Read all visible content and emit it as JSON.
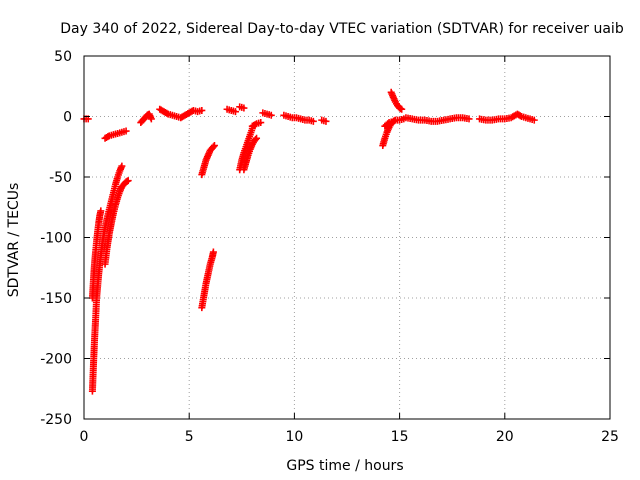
{
  "chart_data": {
    "type": "scatter",
    "title": "Day 340 of 2022, Sidereal Day-to-day VTEC variation (SDTVAR) for receiver uaib",
    "xlabel": "GPS time / hours",
    "ylabel": "SDTVAR / TECUs",
    "xlim": [
      0,
      25
    ],
    "ylim": [
      -250,
      50
    ],
    "xticks": [
      0,
      5,
      10,
      15,
      20,
      25
    ],
    "yticks": [
      50,
      0,
      -50,
      -100,
      -150,
      -200,
      -250
    ],
    "grid": true,
    "marker": "plus",
    "color": "#ff0000",
    "series": [
      {
        "name": "SDTVAR",
        "segments": [
          [
            [
              0.0,
              -2
            ],
            [
              0.1,
              -2
            ],
            [
              0.2,
              -2
            ]
          ],
          [
            [
              1.0,
              -18
            ],
            [
              1.2,
              -16
            ],
            [
              1.4,
              -15
            ],
            [
              1.6,
              -14
            ],
            [
              1.8,
              -13
            ],
            [
              2.0,
              -12
            ]
          ],
          [
            [
              0.4,
              -227
            ],
            [
              0.45,
              -205
            ],
            [
              0.5,
              -185
            ],
            [
              0.55,
              -168
            ],
            [
              0.6,
              -150
            ],
            [
              0.7,
              -130
            ],
            [
              0.8,
              -115
            ],
            [
              0.9,
              -102
            ],
            [
              1.0,
              -92
            ],
            [
              1.1,
              -84
            ],
            [
              1.2,
              -77
            ],
            [
              1.3,
              -70
            ],
            [
              1.4,
              -63
            ],
            [
              1.5,
              -56
            ],
            [
              1.6,
              -50
            ],
            [
              1.7,
              -45
            ],
            [
              1.8,
              -41
            ]
          ],
          [
            [
              0.4,
              -150
            ],
            [
              0.45,
              -135
            ],
            [
              0.5,
              -122
            ],
            [
              0.55,
              -112
            ],
            [
              0.6,
              -103
            ],
            [
              0.65,
              -95
            ],
            [
              0.7,
              -88
            ],
            [
              0.75,
              -82
            ],
            [
              0.8,
              -78
            ]
          ],
          [
            [
              1.0,
              -122
            ],
            [
              1.1,
              -108
            ],
            [
              1.2,
              -97
            ],
            [
              1.3,
              -88
            ],
            [
              1.4,
              -80
            ],
            [
              1.5,
              -73
            ],
            [
              1.6,
              -67
            ],
            [
              1.7,
              -62
            ],
            [
              1.8,
              -58
            ],
            [
              1.9,
              -56
            ],
            [
              2.0,
              -54
            ],
            [
              2.1,
              -53
            ]
          ],
          [
            [
              2.7,
              -5
            ],
            [
              2.8,
              -3
            ],
            [
              2.9,
              -1
            ],
            [
              3.0,
              1
            ],
            [
              3.1,
              2
            ],
            [
              3.2,
              -2
            ]
          ],
          [
            [
              3.6,
              6
            ],
            [
              3.8,
              4
            ],
            [
              4.0,
              2
            ],
            [
              4.2,
              1
            ],
            [
              4.4,
              0
            ],
            [
              4.6,
              -1
            ],
            [
              4.8,
              1
            ],
            [
              5.0,
              3
            ],
            [
              5.2,
              5
            ],
            [
              5.4,
              4
            ],
            [
              5.6,
              5
            ]
          ],
          [
            [
              5.6,
              -158
            ],
            [
              5.7,
              -148
            ],
            [
              5.8,
              -138
            ],
            [
              5.9,
              -130
            ],
            [
              6.0,
              -122
            ],
            [
              6.1,
              -116
            ],
            [
              6.15,
              -112
            ]
          ],
          [
            [
              5.6,
              -48
            ],
            [
              5.7,
              -42
            ],
            [
              5.8,
              -36
            ],
            [
              5.9,
              -32
            ],
            [
              6.0,
              -28
            ],
            [
              6.1,
              -26
            ],
            [
              6.2,
              -24
            ]
          ],
          [
            [
              6.8,
              6
            ],
            [
              7.0,
              5
            ],
            [
              7.2,
              4
            ]
          ],
          [
            [
              7.4,
              8
            ],
            [
              7.6,
              7
            ]
          ],
          [
            [
              7.4,
              -44
            ],
            [
              7.5,
              -36
            ],
            [
              7.6,
              -30
            ],
            [
              7.7,
              -25
            ],
            [
              7.8,
              -20
            ],
            [
              7.9,
              -15
            ],
            [
              8.0,
              -10
            ]
          ],
          [
            [
              7.6,
              -44
            ],
            [
              7.7,
              -38
            ],
            [
              7.8,
              -32
            ],
            [
              7.9,
              -27
            ],
            [
              8.0,
              -23
            ],
            [
              8.1,
              -20
            ],
            [
              8.2,
              -18
            ]
          ],
          [
            [
              8.0,
              -8
            ],
            [
              8.2,
              -6
            ],
            [
              8.4,
              -5
            ]
          ],
          [
            [
              8.5,
              3
            ],
            [
              8.7,
              2
            ],
            [
              8.9,
              1
            ]
          ],
          [
            [
              9.5,
              1
            ],
            [
              9.7,
              0
            ],
            [
              9.9,
              -1
            ],
            [
              10.1,
              -1
            ],
            [
              10.3,
              -2
            ],
            [
              10.5,
              -3
            ],
            [
              10.7,
              -3
            ],
            [
              10.9,
              -4
            ]
          ],
          [
            [
              11.3,
              -3
            ],
            [
              11.5,
              -4
            ]
          ],
          [
            [
              14.2,
              -24
            ],
            [
              14.3,
              -18
            ],
            [
              14.4,
              -13
            ],
            [
              14.5,
              -9
            ],
            [
              14.6,
              -6
            ],
            [
              14.7,
              -4
            ],
            [
              14.8,
              -3
            ],
            [
              15.0,
              -3
            ],
            [
              15.2,
              -2
            ]
          ],
          [
            [
              14.3,
              -8
            ],
            [
              14.5,
              -5
            ],
            [
              14.7,
              -4
            ]
          ],
          [
            [
              14.6,
              20
            ],
            [
              14.7,
              16
            ],
            [
              14.8,
              12
            ],
            [
              14.9,
              9
            ],
            [
              15.0,
              7
            ],
            [
              15.1,
              6
            ]
          ],
          [
            [
              15.3,
              -1
            ],
            [
              15.6,
              -2
            ],
            [
              15.9,
              -3
            ],
            [
              16.2,
              -3
            ],
            [
              16.5,
              -4
            ],
            [
              16.8,
              -4
            ],
            [
              17.1,
              -3
            ],
            [
              17.4,
              -2
            ],
            [
              17.7,
              -1
            ],
            [
              18.0,
              -1
            ],
            [
              18.3,
              -2
            ]
          ],
          [
            [
              18.8,
              -2
            ],
            [
              19.1,
              -3
            ],
            [
              19.4,
              -3
            ],
            [
              19.7,
              -2
            ],
            [
              20.0,
              -2
            ],
            [
              20.3,
              -1
            ],
            [
              20.6,
              2
            ],
            [
              20.8,
              0
            ],
            [
              21.0,
              -1
            ],
            [
              21.2,
              -2
            ],
            [
              21.4,
              -3
            ]
          ]
        ]
      }
    ]
  }
}
